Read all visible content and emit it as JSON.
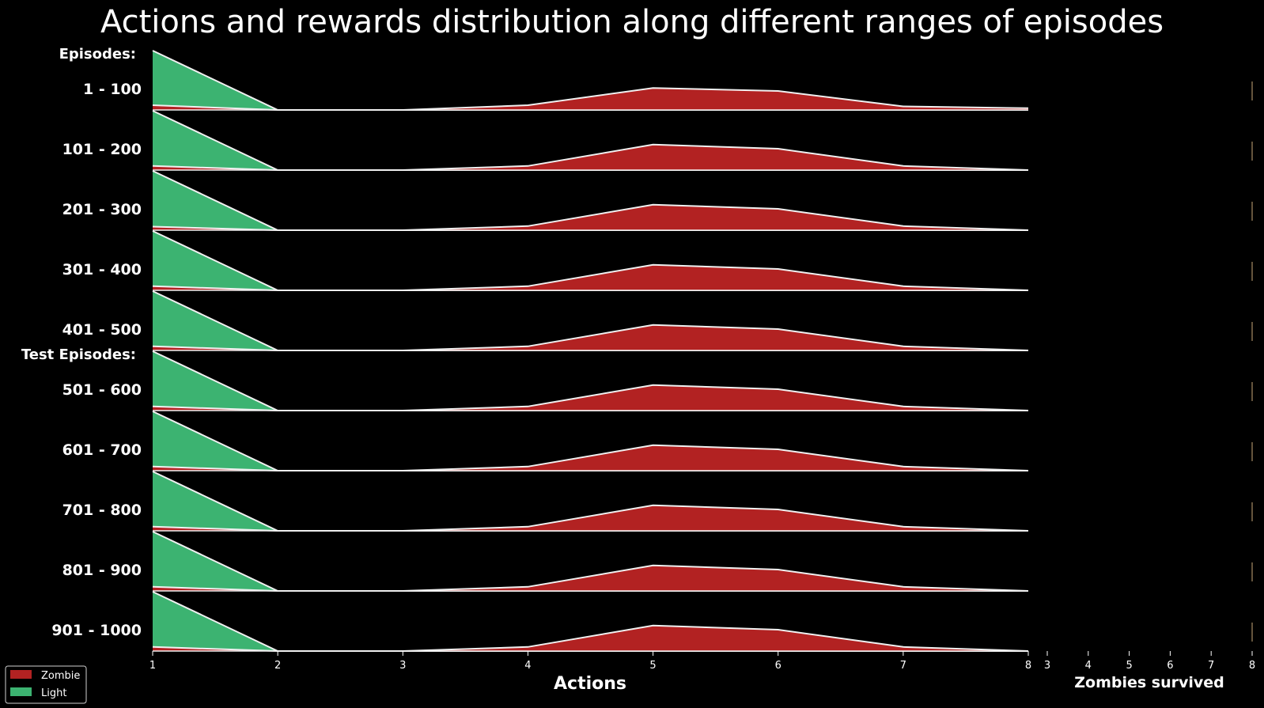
{
  "chart_data": {
    "type": "area",
    "title": "Actions and rewards distribution along different ranges of episodes",
    "xlabel": "Actions",
    "xlabel2": "Zombies survived",
    "group_labels": {
      "train": "Episodes:",
      "test": "Test Episodes:"
    },
    "x": [
      1,
      2,
      3,
      4,
      5,
      6,
      7,
      8
    ],
    "xticks": [
      "1",
      "2",
      "3",
      "4",
      "5",
      "6",
      "7",
      "8"
    ],
    "xticks2": [
      "3",
      "4",
      "5",
      "6",
      "7",
      "8"
    ],
    "xlim": [
      1,
      8
    ],
    "xlim2": [
      3,
      8
    ],
    "ylim": [
      0,
      1
    ],
    "colors": {
      "Zombie": "#b22222",
      "Light": "#3cb371",
      "outline": "#f0f0f0",
      "background": "#000000"
    },
    "legend": {
      "placement": "bottom-left",
      "entries": [
        "Zombie",
        "Light"
      ]
    },
    "rows": [
      {
        "label": "1 - 100",
        "series": [
          {
            "name": "Light",
            "values": [
              1.0,
              0.0,
              0.0,
              0.0,
              0.0,
              0.0,
              0.0,
              0.0
            ]
          },
          {
            "name": "Zombie",
            "values": [
              0.08,
              0.0,
              0.0,
              0.08,
              0.37,
              0.32,
              0.06,
              0.03
            ]
          }
        ]
      },
      {
        "label": "101 - 200",
        "series": [
          {
            "name": "Light",
            "values": [
              1.0,
              0.0,
              0.0,
              0.0,
              0.0,
              0.0,
              0.0,
              0.0
            ]
          },
          {
            "name": "Zombie",
            "values": [
              0.07,
              0.0,
              0.0,
              0.07,
              0.43,
              0.36,
              0.07,
              0.0
            ]
          }
        ]
      },
      {
        "label": "201 - 300",
        "series": [
          {
            "name": "Light",
            "values": [
              1.0,
              0.0,
              0.0,
              0.0,
              0.0,
              0.0,
              0.0,
              0.0
            ]
          },
          {
            "name": "Zombie",
            "values": [
              0.06,
              0.0,
              0.0,
              0.07,
              0.43,
              0.36,
              0.07,
              0.0
            ]
          }
        ]
      },
      {
        "label": "301 - 400",
        "series": [
          {
            "name": "Light",
            "values": [
              1.0,
              0.0,
              0.0,
              0.0,
              0.0,
              0.0,
              0.0,
              0.0
            ]
          },
          {
            "name": "Zombie",
            "values": [
              0.07,
              0.0,
              0.0,
              0.07,
              0.43,
              0.36,
              0.07,
              0.0
            ]
          }
        ]
      },
      {
        "label": "401 - 500",
        "series": [
          {
            "name": "Light",
            "values": [
              1.0,
              0.0,
              0.0,
              0.0,
              0.0,
              0.0,
              0.0,
              0.0
            ]
          },
          {
            "name": "Zombie",
            "values": [
              0.07,
              0.0,
              0.0,
              0.07,
              0.43,
              0.36,
              0.07,
              0.0
            ]
          }
        ]
      },
      {
        "label": "501 - 600",
        "series": [
          {
            "name": "Light",
            "values": [
              1.0,
              0.0,
              0.0,
              0.0,
              0.0,
              0.0,
              0.0,
              0.0
            ]
          },
          {
            "name": "Zombie",
            "values": [
              0.07,
              0.0,
              0.0,
              0.07,
              0.43,
              0.36,
              0.07,
              0.0
            ]
          }
        ]
      },
      {
        "label": "601 - 700",
        "series": [
          {
            "name": "Light",
            "values": [
              1.0,
              0.0,
              0.0,
              0.0,
              0.0,
              0.0,
              0.0,
              0.0
            ]
          },
          {
            "name": "Zombie",
            "values": [
              0.07,
              0.0,
              0.0,
              0.07,
              0.43,
              0.36,
              0.07,
              0.0
            ]
          }
        ]
      },
      {
        "label": "701 - 800",
        "series": [
          {
            "name": "Light",
            "values": [
              1.0,
              0.0,
              0.0,
              0.0,
              0.0,
              0.0,
              0.0,
              0.0
            ]
          },
          {
            "name": "Zombie",
            "values": [
              0.07,
              0.0,
              0.0,
              0.07,
              0.43,
              0.36,
              0.07,
              0.0
            ]
          }
        ]
      },
      {
        "label": "801 - 900",
        "series": [
          {
            "name": "Light",
            "values": [
              1.0,
              0.0,
              0.0,
              0.0,
              0.0,
              0.0,
              0.0,
              0.0
            ]
          },
          {
            "name": "Zombie",
            "values": [
              0.07,
              0.0,
              0.0,
              0.07,
              0.43,
              0.36,
              0.07,
              0.0
            ]
          }
        ]
      },
      {
        "label": "901 - 1000",
        "series": [
          {
            "name": "Light",
            "values": [
              1.0,
              0.0,
              0.0,
              0.0,
              0.0,
              0.0,
              0.0,
              0.0
            ]
          },
          {
            "name": "Zombie",
            "values": [
              0.07,
              0.0,
              0.0,
              0.07,
              0.43,
              0.36,
              0.07,
              0.0
            ]
          }
        ]
      }
    ]
  }
}
